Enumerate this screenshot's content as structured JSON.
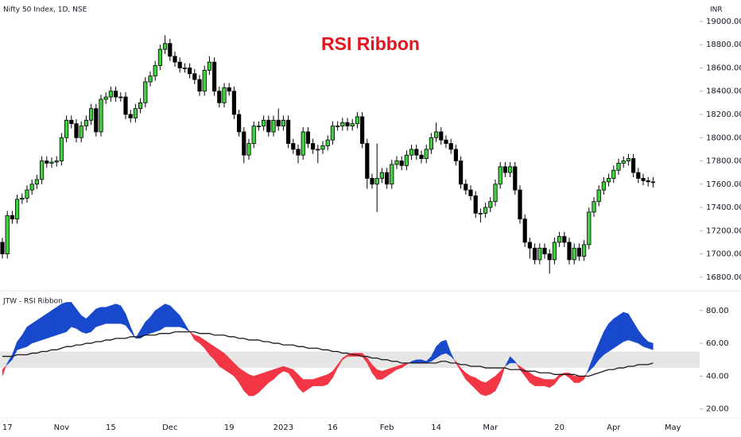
{
  "chart_data": [
    {
      "type": "candlestick",
      "title": "RSI Ribbon",
      "subtitle": "Nifty 50 Index, 1D, NSE",
      "y_axis_label": "INR",
      "categories": [
        null,
        "17",
        null,
        null,
        null,
        null,
        null,
        null,
        null,
        null,
        null,
        null,
        "Nov",
        null,
        null,
        null,
        null,
        null,
        null,
        null,
        null,
        null,
        "15",
        null,
        null,
        null,
        null,
        null,
        null,
        null,
        null,
        null,
        null,
        null,
        "Dec",
        null,
        null,
        null,
        null,
        null,
        null,
        null,
        null,
        null,
        null,
        null,
        "19",
        null,
        null,
        null,
        null,
        null,
        null,
        null,
        null,
        null,
        null,
        "2023",
        null,
        null,
        null,
        null,
        null,
        null,
        null,
        null,
        null,
        "16",
        null,
        null,
        null,
        null,
        null,
        null,
        null,
        null,
        null,
        null,
        "Feb",
        null,
        null,
        null,
        null,
        null,
        null,
        null,
        null,
        null,
        "14",
        null,
        null,
        null,
        null,
        null,
        null,
        null,
        null,
        null,
        null,
        "Mar",
        null,
        null,
        null,
        null,
        null,
        null,
        null,
        null,
        null,
        null,
        null,
        null,
        null,
        "20",
        null,
        null,
        null,
        null,
        null,
        null,
        null,
        null,
        null,
        null,
        "Apr",
        null,
        null,
        null,
        null,
        null,
        null,
        null,
        null,
        null,
        null,
        null,
        "May"
      ],
      "open": [
        17100,
        17000,
        17330,
        17300,
        17470,
        17480,
        17550,
        17600,
        17640,
        17800,
        17780,
        17790,
        17800,
        18000,
        18150,
        18120,
        18000,
        18100,
        18150,
        18250,
        18050,
        18330,
        18350,
        18400,
        18350,
        18350,
        18200,
        18170,
        18250,
        18300,
        18480,
        18530,
        18620,
        18760,
        18810,
        18700,
        18650,
        18600,
        18600,
        18550,
        18500,
        18400,
        18580,
        18650,
        18400,
        18300,
        18430,
        18400,
        18200,
        18050,
        17850,
        17950,
        18100,
        18100,
        18150,
        18050,
        18150,
        18100,
        18150,
        17950,
        17900,
        17850,
        18050,
        17950,
        17900,
        17900,
        17930,
        17980,
        18100,
        18100,
        18130,
        18100,
        18120,
        18180,
        17950,
        17650,
        17600,
        17650,
        17700,
        17600,
        17770,
        17800,
        17760,
        17850,
        17900,
        17850,
        17820,
        17900,
        18000,
        18050,
        17980,
        17950,
        17900,
        17800,
        17600,
        17550,
        17500,
        17350,
        17350,
        17400,
        17450,
        17600,
        17750,
        17700,
        17750,
        17550,
        17300,
        17100,
        17050,
        16950,
        17050,
        17000,
        16950,
        17100,
        17150,
        17100,
        16950,
        17050,
        16980,
        17080,
        17360,
        17450,
        17550,
        17620,
        17650,
        17720,
        17780,
        17800,
        17820,
        17700,
        17650,
        17630,
        17620,
        null,
        null,
        null,
        null
      ],
      "high": [
        17140,
        17370,
        17370,
        17510,
        17520,
        17590,
        17640,
        17680,
        17840,
        17840,
        17830,
        17840,
        18040,
        18190,
        18190,
        18160,
        18140,
        18190,
        18290,
        18290,
        18370,
        18390,
        18440,
        18440,
        18390,
        18390,
        18240,
        18290,
        18340,
        18520,
        18570,
        18660,
        18800,
        18880,
        18850,
        18740,
        18690,
        18640,
        18640,
        18590,
        18540,
        18620,
        18700,
        18690,
        18440,
        18470,
        18470,
        18440,
        18240,
        18090,
        17990,
        18140,
        18140,
        18190,
        18190,
        18190,
        18250,
        18190,
        18190,
        17990,
        17940,
        18090,
        18090,
        17990,
        17940,
        17970,
        18020,
        18140,
        18140,
        18170,
        18170,
        18160,
        18220,
        18220,
        17990,
        17690,
        17950,
        17740,
        17740,
        17810,
        17840,
        17840,
        17890,
        17940,
        17940,
        17890,
        17940,
        18040,
        18130,
        18090,
        18020,
        17990,
        17940,
        17840,
        17640,
        17590,
        17540,
        17390,
        17440,
        17490,
        17640,
        17790,
        17790,
        17790,
        17790,
        17590,
        17340,
        17140,
        17090,
        17090,
        17090,
        17040,
        17140,
        17190,
        17190,
        17140,
        17090,
        17090,
        17120,
        17400,
        17490,
        17590,
        17660,
        17690,
        17760,
        17820,
        17840,
        17860,
        17860,
        17740,
        17690,
        17660,
        17660,
        null,
        null,
        null,
        null
      ],
      "low": [
        16960,
        16960,
        17260,
        17260,
        17430,
        17440,
        17510,
        17560,
        17600,
        17740,
        17740,
        17750,
        17760,
        17960,
        18080,
        17960,
        17960,
        18060,
        18110,
        18010,
        18010,
        18290,
        18310,
        18310,
        18310,
        18160,
        18130,
        18130,
        18210,
        18260,
        18440,
        18490,
        18580,
        18720,
        18660,
        18610,
        18560,
        18560,
        18510,
        18460,
        18360,
        18360,
        18540,
        18360,
        18260,
        18260,
        18360,
        18160,
        18010,
        17780,
        17810,
        17910,
        18060,
        18060,
        18010,
        18010,
        18060,
        18060,
        17910,
        17860,
        17780,
        17810,
        17910,
        17860,
        17780,
        17860,
        17890,
        17940,
        18060,
        18060,
        18060,
        18060,
        18080,
        17910,
        17560,
        17560,
        17360,
        17610,
        17560,
        17560,
        17730,
        17720,
        17720,
        17810,
        17810,
        17780,
        17780,
        17860,
        17960,
        17940,
        17910,
        17860,
        17760,
        17560,
        17510,
        17460,
        17310,
        17270,
        17310,
        17360,
        17410,
        17560,
        17660,
        17660,
        17510,
        17260,
        17060,
        16960,
        16910,
        16910,
        16960,
        16830,
        16910,
        17060,
        17060,
        16910,
        16910,
        16940,
        16940,
        17040,
        17320,
        17410,
        17510,
        17580,
        17610,
        17680,
        17740,
        17760,
        17660,
        17610,
        17590,
        17580,
        17570,
        null,
        null,
        null,
        null
      ],
      "close": [
        17000,
        17330,
        17300,
        17470,
        17480,
        17550,
        17600,
        17640,
        17800,
        17780,
        17790,
        17800,
        18000,
        18150,
        18120,
        18000,
        18100,
        18150,
        18250,
        18050,
        18330,
        18350,
        18400,
        18350,
        18350,
        18200,
        18170,
        18250,
        18300,
        18480,
        18530,
        18620,
        18760,
        18810,
        18700,
        18650,
        18600,
        18600,
        18550,
        18500,
        18400,
        18580,
        18650,
        18400,
        18300,
        18430,
        18400,
        18200,
        18050,
        17850,
        17950,
        18100,
        18100,
        18150,
        18050,
        18150,
        18100,
        18150,
        17950,
        17900,
        17850,
        18050,
        17950,
        17900,
        17900,
        17930,
        17980,
        18100,
        18100,
        18130,
        18100,
        18120,
        18180,
        17950,
        17650,
        17600,
        17650,
        17700,
        17600,
        17770,
        17800,
        17760,
        17850,
        17900,
        17850,
        17820,
        17900,
        18000,
        18050,
        17980,
        17950,
        17900,
        17800,
        17600,
        17550,
        17500,
        17350,
        17350,
        17400,
        17450,
        17600,
        17750,
        17700,
        17750,
        17550,
        17300,
        17100,
        17050,
        16950,
        17050,
        17000,
        16950,
        17100,
        17150,
        17100,
        16950,
        17050,
        16980,
        17080,
        17360,
        17450,
        17550,
        17620,
        17650,
        17720,
        17780,
        17800,
        17820,
        17700,
        17650,
        17630,
        17620,
        17620,
        null,
        null,
        null,
        null
      ],
      "up_color": "#3fd13f",
      "down_color": "#000000",
      "ylim": [
        16710,
        19150
      ],
      "yticks": [
        {
          "value": 16800,
          "label": "16800.00"
        },
        {
          "value": 17000,
          "label": "17000.00"
        },
        {
          "value": 17200,
          "label": "17200.00"
        },
        {
          "value": 17400,
          "label": "17400.00"
        },
        {
          "value": 17600,
          "label": "17600.00"
        },
        {
          "value": 17800,
          "label": "17800.00"
        },
        {
          "value": 18000,
          "label": "18000.00"
        },
        {
          "value": 18200,
          "label": "18200.00"
        },
        {
          "value": 18400,
          "label": "18400.00"
        },
        {
          "value": 18600,
          "label": "18600.00"
        },
        {
          "value": 18800,
          "label": "18800.00"
        },
        {
          "value": 19000,
          "label": "19000.00"
        }
      ]
    },
    {
      "type": "ribbon",
      "title": "JTW - RSI Ribbon",
      "series": [
        {
          "values": [
            40,
            48,
            53,
            61,
            65,
            70,
            72,
            74,
            76,
            78,
            80,
            82,
            84,
            85,
            85,
            81,
            77,
            75,
            78,
            81,
            82,
            82,
            83,
            84,
            83,
            78,
            70,
            63,
            68,
            73,
            76,
            80,
            82,
            84,
            83,
            80,
            77,
            72,
            67,
            62,
            60,
            57,
            53,
            50,
            46,
            44,
            42,
            40,
            36,
            31,
            28,
            28,
            30,
            33,
            36,
            38,
            41,
            43,
            42,
            38,
            33,
            30,
            32,
            34,
            34,
            34,
            35,
            39,
            45,
            50,
            52,
            52,
            52,
            52,
            48,
            42,
            38,
            38,
            40,
            42,
            44,
            45,
            47,
            49,
            50,
            50,
            49,
            52,
            58,
            61,
            62,
            54,
            48,
            43,
            38,
            35,
            32,
            29,
            28,
            29,
            31,
            37,
            46,
            52,
            49,
            44,
            40,
            36,
            34,
            34,
            34,
            33,
            35,
            39,
            41,
            39,
            36,
            36,
            38,
            45,
            53,
            60,
            67,
            72,
            75,
            77,
            79,
            78,
            73,
            68,
            64,
            61,
            60,
            null,
            null,
            null,
            null
          ]
        },
        {
          "values": [
            44,
            47,
            50,
            56,
            57,
            58,
            60,
            61,
            62,
            63,
            64,
            65,
            66,
            67,
            70,
            69,
            67,
            66,
            67,
            70,
            71,
            72,
            72,
            72,
            72,
            71,
            67,
            63,
            63,
            65,
            66,
            67,
            68,
            70,
            70,
            70,
            70,
            69,
            67,
            65,
            64,
            62,
            60,
            58,
            56,
            54,
            51,
            48,
            45,
            43,
            41,
            40,
            41,
            42,
            43,
            44,
            45,
            46,
            45,
            44,
            41,
            38,
            38,
            38,
            39,
            40,
            41,
            43,
            47,
            51,
            53,
            54,
            54,
            54,
            51,
            47,
            44,
            43,
            44,
            45,
            46,
            47,
            48,
            48,
            48,
            48,
            48,
            49,
            51,
            53,
            54,
            52,
            49,
            45,
            42,
            40,
            39,
            37,
            36,
            38,
            40,
            43,
            46,
            48,
            48,
            46,
            44,
            42,
            40,
            39,
            38,
            38,
            38,
            41,
            42,
            42,
            40,
            40,
            40,
            43,
            46,
            50,
            53,
            55,
            57,
            59,
            61,
            62,
            61,
            60,
            58,
            57,
            56,
            null,
            null,
            null,
            null
          ]
        },
        {
          "color": "#1a1a1a",
          "values": [
            52,
            52,
            52,
            53,
            53,
            53,
            54,
            54,
            55,
            55,
            56,
            56,
            57,
            58,
            58,
            59,
            59,
            60,
            60,
            61,
            61,
            62,
            62,
            63,
            63,
            63,
            64,
            64,
            64,
            65,
            65,
            65,
            66,
            66,
            66,
            67,
            67,
            67,
            67,
            67,
            66,
            66,
            66,
            65,
            65,
            65,
            64,
            64,
            63,
            63,
            62,
            62,
            62,
            61,
            61,
            60,
            60,
            59,
            59,
            59,
            58,
            58,
            57,
            57,
            57,
            56,
            56,
            55,
            55,
            54,
            54,
            53,
            53,
            52,
            52,
            51,
            51,
            50,
            50,
            49,
            49,
            48,
            48,
            48,
            48,
            48,
            48,
            48,
            48,
            49,
            49,
            48,
            48,
            47,
            47,
            46,
            46,
            46,
            45,
            45,
            45,
            45,
            45,
            44,
            44,
            44,
            43,
            43,
            43,
            42,
            42,
            42,
            41,
            41,
            41,
            41,
            41,
            40,
            40,
            40,
            41,
            42,
            43,
            44,
            44,
            45,
            45,
            46,
            46,
            47,
            47,
            47,
            48,
            null,
            null,
            null,
            null
          ]
        }
      ],
      "up_color": "#1848cc",
      "down_color": "#f23645",
      "band": [
        45,
        55
      ],
      "band_color": "#e6e6e6",
      "ylim": [
        15,
        91.5
      ],
      "yticks": [
        {
          "value": 20,
          "label": "20.00"
        },
        {
          "value": 40,
          "label": "40.00"
        },
        {
          "value": 60,
          "label": "60.00"
        },
        {
          "value": 80,
          "label": "80.00"
        }
      ]
    }
  ]
}
